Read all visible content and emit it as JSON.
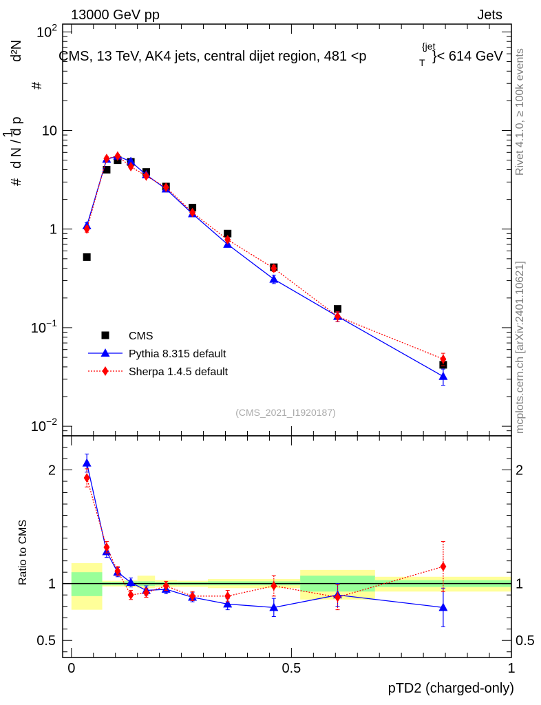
{
  "header": {
    "left": "13000 GeV pp",
    "right": "Jets",
    "title": "CMS, 13 TeV, AK4 jets, central dijet region, 481 <p",
    "title_sub": "T",
    "title_sup": "{jet",
    "title_end": "}< 614 GeV",
    "analysis_id": "(CMS_2021_I1920187)"
  },
  "side": {
    "rivet": "Rivet 4.1.0, ≥ 100k events",
    "mcplots": "mcplots.cern.ch [arXiv:2401.10621]"
  },
  "colors": {
    "cms": "#000000",
    "pythia": "#0000ff",
    "sherpa": "#ff0000",
    "band_inner": "#99ff99",
    "band_outer": "#ffff99"
  },
  "chart_data": [
    {
      "type": "scatter",
      "panel": "main",
      "xlabel": "pTD2 (charged-only)",
      "ylabel_numerator": "1",
      "ylabel_denominator": "d N / d p",
      "ylabel_left": "#",
      "ylabel_deriv": "d²N",
      "ylabel_sub": "#",
      "yscale": "log",
      "ylim": [
        0.008,
        120
      ],
      "xlim": [
        -0.02,
        1.0
      ],
      "yticks": [
        {
          "value": 0.01,
          "base": "10",
          "exp": "−2"
        },
        {
          "value": 0.1,
          "base": "10",
          "exp": "−1"
        },
        {
          "value": 1,
          "base": "1",
          "exp": ""
        },
        {
          "value": 10,
          "base": "10",
          "exp": ""
        },
        {
          "value": 100,
          "base": "10",
          "exp": "2"
        }
      ],
      "legend": [
        {
          "name": "CMS",
          "marker": "square"
        },
        {
          "name": "Pythia 8.315 default",
          "marker": "triangle"
        },
        {
          "name": "Sherpa 1.4.5 default",
          "marker": "diamond"
        }
      ],
      "series": [
        {
          "name": "CMS",
          "x": [
            0.035,
            0.08,
            0.105,
            0.135,
            0.17,
            0.215,
            0.275,
            0.355,
            0.46,
            0.605,
            0.845
          ],
          "y": [
            0.52,
            4.0,
            5.0,
            4.8,
            3.8,
            2.7,
            1.65,
            0.9,
            0.41,
            0.155,
            0.042
          ],
          "yerr": [
            0,
            0,
            0,
            0,
            0,
            0,
            0,
            0,
            0,
            0,
            0
          ]
        },
        {
          "name": "Pythia 8.315 default",
          "x": [
            0.035,
            0.08,
            0.105,
            0.135,
            0.17,
            0.215,
            0.275,
            0.355,
            0.46,
            0.605,
            0.845
          ],
          "y": [
            1.08,
            5.1,
            5.5,
            4.85,
            3.55,
            2.55,
            1.43,
            0.7,
            0.31,
            0.13,
            0.032
          ],
          "yerr": [
            0.08,
            0.2,
            0.2,
            0.2,
            0.15,
            0.1,
            0.06,
            0.04,
            0.03,
            0.015,
            0.006
          ]
        },
        {
          "name": "Sherpa 1.4.5 default",
          "x": [
            0.035,
            0.08,
            0.105,
            0.135,
            0.17,
            0.215,
            0.275,
            0.355,
            0.46,
            0.605,
            0.845
          ],
          "y": [
            1.0,
            5.2,
            5.5,
            4.3,
            3.45,
            2.65,
            1.47,
            0.78,
            0.4,
            0.13,
            0.048
          ],
          "yerr": [
            0.07,
            0.2,
            0.2,
            0.2,
            0.15,
            0.1,
            0.06,
            0.04,
            0.03,
            0.015,
            0.007
          ]
        }
      ]
    },
    {
      "type": "scatter",
      "panel": "ratio",
      "ylabel": "Ratio to CMS",
      "xlabel": "pTD2 (charged-only)",
      "xlim": [
        -0.02,
        1.0
      ],
      "ylim": [
        0.35,
        2.3
      ],
      "yticks": [
        {
          "value": 0.5,
          "label": "0.5"
        },
        {
          "value": 1,
          "label": "1"
        },
        {
          "value": 2,
          "label": "2"
        }
      ],
      "xticks": [
        {
          "value": 0,
          "label": "0"
        },
        {
          "value": 0.5,
          "label": "0.5"
        },
        {
          "value": 1,
          "label": "1"
        }
      ],
      "bands": [
        {
          "x0": 0.0,
          "x1": 0.07,
          "inner": [
            0.89,
            1.1
          ],
          "outer": [
            0.77,
            1.18
          ]
        },
        {
          "x0": 0.07,
          "x1": 0.09,
          "inner": [
            0.985,
            1.015
          ],
          "outer": [
            0.975,
            1.025
          ]
        },
        {
          "x0": 0.09,
          "x1": 0.12,
          "inner": [
            0.985,
            1.015
          ],
          "outer": [
            0.975,
            1.025
          ]
        },
        {
          "x0": 0.12,
          "x1": 0.15,
          "inner": [
            0.98,
            1.02
          ],
          "outer": [
            0.97,
            1.03
          ]
        },
        {
          "x0": 0.15,
          "x1": 0.19,
          "inner": [
            0.98,
            1.02
          ],
          "outer": [
            0.96,
            1.07
          ]
        },
        {
          "x0": 0.19,
          "x1": 0.24,
          "inner": [
            0.985,
            1.015
          ],
          "outer": [
            0.97,
            1.03
          ]
        },
        {
          "x0": 0.24,
          "x1": 0.31,
          "inner": [
            0.985,
            1.015
          ],
          "outer": [
            0.97,
            1.025
          ]
        },
        {
          "x0": 0.31,
          "x1": 0.52,
          "inner": [
            0.985,
            1.02
          ],
          "outer": [
            0.96,
            1.04
          ]
        },
        {
          "x0": 0.52,
          "x1": 0.69,
          "inner": [
            0.93,
            1.07
          ],
          "outer": [
            0.86,
            1.12
          ]
        },
        {
          "x0": 0.69,
          "x1": 1.0,
          "inner": [
            0.97,
            1.03
          ],
          "outer": [
            0.93,
            1.06
          ]
        }
      ],
      "series": [
        {
          "name": "Pythia 8.315 default",
          "x": [
            0.035,
            0.08,
            0.105,
            0.135,
            0.17,
            0.215,
            0.275,
            0.355,
            0.46,
            0.605,
            0.845
          ],
          "y": [
            2.06,
            1.28,
            1.1,
            1.01,
            0.94,
            0.95,
            0.88,
            0.82,
            0.79,
            0.9,
            0.79
          ],
          "yerr": [
            0.08,
            0.05,
            0.04,
            0.04,
            0.04,
            0.04,
            0.04,
            0.05,
            0.08,
            0.1,
            0.17
          ]
        },
        {
          "name": "Sherpa 1.4.5 default",
          "x": [
            0.035,
            0.08,
            0.105,
            0.135,
            0.17,
            0.215,
            0.275,
            0.355,
            0.46,
            0.605,
            0.845
          ],
          "y": [
            1.93,
            1.32,
            1.11,
            0.9,
            0.92,
            0.98,
            0.89,
            0.89,
            0.98,
            0.88,
            1.15
          ],
          "yerr": [
            0.08,
            0.05,
            0.04,
            0.04,
            0.04,
            0.04,
            0.04,
            0.05,
            0.09,
            0.11,
            0.22
          ]
        }
      ]
    }
  ]
}
